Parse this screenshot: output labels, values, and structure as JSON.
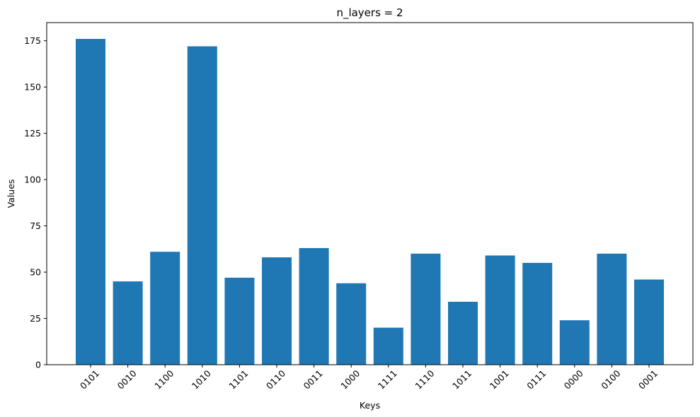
{
  "chart_data": {
    "type": "bar",
    "title": "n_layers = 2",
    "xlabel": "Keys",
    "ylabel": "Values",
    "categories": [
      "0101",
      "0010",
      "1100",
      "1010",
      "1101",
      "0110",
      "0011",
      "1000",
      "1111",
      "1110",
      "1011",
      "1001",
      "0111",
      "0000",
      "0100",
      "0001"
    ],
    "values": [
      176,
      45,
      61,
      172,
      47,
      58,
      63,
      44,
      20,
      60,
      34,
      59,
      55,
      24,
      60,
      46
    ],
    "ylim": [
      0,
      184.8
    ],
    "yticks": [
      0,
      25,
      50,
      75,
      100,
      125,
      150,
      175
    ],
    "bar_color": "#1f77b4",
    "grid": false,
    "legend": "none"
  }
}
